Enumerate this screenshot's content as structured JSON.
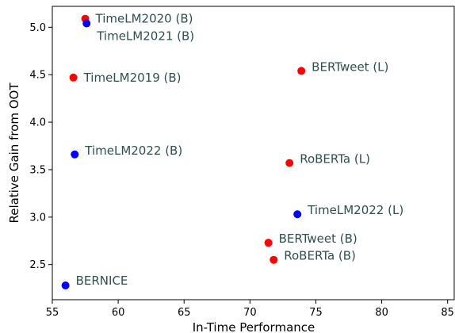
{
  "chart_data": {
    "type": "scatter",
    "xlabel": "In-Time Performance",
    "ylabel": "Relative Gain from OOT",
    "xlim": [
      55,
      85.5
    ],
    "ylim": [
      2.13,
      5.22
    ],
    "xticks": [
      55,
      60,
      65,
      70,
      75,
      80,
      85
    ],
    "yticks": [
      2.5,
      3.0,
      3.5,
      4.0,
      4.5,
      5.0
    ],
    "grid": false,
    "colors": {
      "red": "#ff0000",
      "blue": "#0000ff",
      "label": "#2f4f4f"
    },
    "points": [
      {
        "label": "TimeLM2020 (B)",
        "x": 57.5,
        "y": 5.09,
        "color": "red"
      },
      {
        "label": "TimeLM2021 (B)",
        "x": 57.6,
        "y": 5.04,
        "color": "blue"
      },
      {
        "label": "TimeLM2019 (B)",
        "x": 56.6,
        "y": 4.47,
        "color": "red"
      },
      {
        "label": "BERTweet (L)",
        "x": 73.9,
        "y": 4.54,
        "color": "red"
      },
      {
        "label": "TimeLM2022 (B)",
        "x": 56.7,
        "y": 3.66,
        "color": "blue"
      },
      {
        "label": "RoBERTa (L)",
        "x": 73.0,
        "y": 3.57,
        "color": "red"
      },
      {
        "label": "TimeLM2022 (L)",
        "x": 73.6,
        "y": 3.03,
        "color": "blue"
      },
      {
        "label": "BERTweet (B)",
        "x": 71.4,
        "y": 2.73,
        "color": "red"
      },
      {
        "label": "RoBERTa (B)",
        "x": 71.8,
        "y": 2.55,
        "color": "red"
      },
      {
        "label": "BERNICE",
        "x": 56.0,
        "y": 2.28,
        "color": "blue"
      }
    ]
  }
}
